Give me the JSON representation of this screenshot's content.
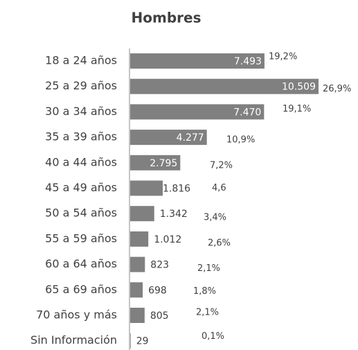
{
  "chart_data": {
    "type": "hbar",
    "title": "Hombres",
    "categories": [
      "18 a 24 años",
      "25 a 29 años",
      "30 a 34 años",
      "35 a 39 años",
      "40 a 44 años",
      "45 a 49 años",
      "50 a 54 años",
      "55 a 59 años",
      "60 a 64 años",
      "65 a 69 años",
      "70 años y más",
      "Sin Información"
    ],
    "values": [
      7493,
      10509,
      7470,
      4277,
      2795,
      1816,
      1342,
      1012,
      823,
      698,
      805,
      29
    ],
    "value_labels": [
      "7.493",
      "10.509",
      "7.470",
      "4.277",
      "2.795",
      "1.816",
      "1.342",
      "1.012",
      "823",
      "698",
      "805",
      "29"
    ],
    "share_labels": [
      "19,2%",
      "26,9%",
      "19,1%",
      "10,9%",
      "7,2%",
      "4,6",
      "3,4%",
      "2,6%",
      "2,1%",
      "1,8%",
      "2,1%",
      "0,1%"
    ],
    "color": "#808080"
  }
}
